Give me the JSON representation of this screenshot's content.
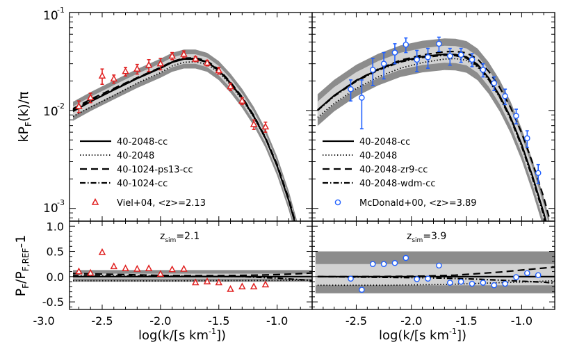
{
  "chart_data": [
    {
      "type": "line",
      "panel": "top-left",
      "xlim": [
        -2.78,
        -0.7
      ],
      "ylim_log10": [
        -3.13,
        -1.0
      ],
      "ylabel": "kP_F(k)/π",
      "yticks": [
        {
          "exp": -1,
          "label": "10"
        },
        {
          "exp": -2,
          "label": "10"
        },
        {
          "exp": -3,
          "label": "10"
        }
      ],
      "series": [
        {
          "name": "40-2048-cc",
          "style": "solid",
          "x": [
            -2.75,
            -2.6,
            -2.4,
            -2.2,
            -2.0,
            -1.9,
            -1.8,
            -1.7,
            -1.6,
            -1.5,
            -1.4,
            -1.3,
            -1.2,
            -1.1,
            -1.0,
            -0.9,
            -0.8
          ],
          "y": [
            0.0098,
            0.0123,
            0.0162,
            0.0212,
            0.027,
            0.031,
            0.0335,
            0.0335,
            0.031,
            0.0255,
            0.019,
            0.0133,
            0.0087,
            0.0052,
            0.0027,
            0.0012,
            0.00045
          ]
        },
        {
          "name": "40-2048",
          "style": "dotted",
          "x": [
            -2.75,
            -2.6,
            -2.4,
            -2.2,
            -2.0,
            -1.9,
            -1.8,
            -1.7,
            -1.6,
            -1.5,
            -1.4,
            -1.3,
            -1.2,
            -1.1,
            -1.0,
            -0.9,
            -0.8
          ],
          "y": [
            0.0087,
            0.0108,
            0.0142,
            0.019,
            0.0243,
            0.0285,
            0.031,
            0.0315,
            0.0295,
            0.0245,
            0.0183,
            0.0129,
            0.0085,
            0.0051,
            0.0027,
            0.0012,
            0.00045
          ]
        },
        {
          "name": "40-1024-ps13-cc",
          "style": "dashed",
          "x": [
            -2.75,
            -2.6,
            -2.4,
            -2.2,
            -2.0,
            -1.9,
            -1.8,
            -1.7,
            -1.6,
            -1.5,
            -1.4,
            -1.3,
            -1.2,
            -1.1,
            -1.0,
            -0.9,
            -0.8
          ],
          "y": [
            0.0104,
            0.013,
            0.0168,
            0.0216,
            0.0275,
            0.0316,
            0.0342,
            0.0345,
            0.032,
            0.0262,
            0.0195,
            0.0137,
            0.0089,
            0.0053,
            0.0028,
            0.00125,
            0.00047
          ]
        },
        {
          "name": "40-1024-cc",
          "style": "dashdot",
          "x": [
            -2.75,
            -2.6,
            -2.4,
            -2.2,
            -2.0,
            -1.9,
            -1.8,
            -1.7,
            -1.6,
            -1.5,
            -1.4,
            -1.3,
            -1.2,
            -1.1,
            -1.0,
            -0.9,
            -0.8
          ],
          "y": [
            0.0101,
            0.0126,
            0.0165,
            0.0214,
            0.0272,
            0.0313,
            0.0338,
            0.034,
            0.0313,
            0.0257,
            0.0191,
            0.0134,
            0.0087,
            0.0052,
            0.0027,
            0.0012,
            0.00045
          ]
        }
      ],
      "data_points": {
        "name": "Viel+04, <z>=2.13",
        "marker": "triangle",
        "color": "#e02020",
        "x": [
          -2.7,
          -2.6,
          -2.5,
          -2.4,
          -2.3,
          -2.2,
          -2.1,
          -2.0,
          -1.9,
          -1.8,
          -1.7,
          -1.6,
          -1.5,
          -1.4,
          -1.3,
          -1.2,
          -1.1
        ],
        "y": [
          0.011,
          0.0135,
          0.0225,
          0.021,
          0.025,
          0.0265,
          0.029,
          0.03,
          0.036,
          0.0375,
          0.0335,
          0.0305,
          0.0255,
          0.0175,
          0.0125,
          0.0072,
          0.0068
        ],
        "err": [
          0.0015,
          0.0015,
          0.004,
          0.002,
          0.0025,
          0.003,
          0.004,
          0.004,
          0.003,
          0.003,
          0.002,
          0.002,
          0.002,
          0.0015,
          0.001,
          0.0008,
          0.0008
        ]
      },
      "legend": [
        "40-2048-cc",
        "40-2048",
        "40-1024-ps13-cc",
        "40-1024-cc",
        "Viel+04, <z>=2.13"
      ]
    },
    {
      "type": "line",
      "panel": "top-right",
      "xlim": [
        -2.9,
        -0.7
      ],
      "ylim_log10": [
        -3.13,
        -1.0
      ],
      "series": [
        {
          "name": "40-2048-cc",
          "style": "solid",
          "x": [
            -2.85,
            -2.7,
            -2.5,
            -2.3,
            -2.1,
            -1.9,
            -1.7,
            -1.6,
            -1.5,
            -1.4,
            -1.3,
            -1.2,
            -1.1,
            -1.0,
            -0.9,
            -0.8,
            -0.75
          ],
          "y": [
            0.0101,
            0.0142,
            0.0202,
            0.0262,
            0.0318,
            0.0355,
            0.0375,
            0.0372,
            0.0352,
            0.0295,
            0.0215,
            0.0142,
            0.0085,
            0.0045,
            0.0021,
            0.0009,
            0.00055
          ]
        },
        {
          "name": "40-2048",
          "style": "dotted",
          "x": [
            -2.85,
            -2.7,
            -2.5,
            -2.3,
            -2.1,
            -1.9,
            -1.7,
            -1.6,
            -1.5,
            -1.4,
            -1.3,
            -1.2,
            -1.1,
            -1.0,
            -0.9,
            -0.8,
            -0.75
          ],
          "y": [
            0.0085,
            0.0118,
            0.0168,
            0.022,
            0.027,
            0.0308,
            0.0335,
            0.0338,
            0.0325,
            0.0278,
            0.0205,
            0.0137,
            0.0083,
            0.0044,
            0.0021,
            0.0009,
            0.00055
          ]
        },
        {
          "name": "40-2048-zr9-cc",
          "style": "dashed",
          "x": [
            -2.85,
            -2.7,
            -2.5,
            -2.3,
            -2.1,
            -1.9,
            -1.7,
            -1.6,
            -1.5,
            -1.4,
            -1.3,
            -1.2,
            -1.1,
            -1.0,
            -0.9,
            -0.8,
            -0.75
          ],
          "y": [
            0.0101,
            0.0142,
            0.0203,
            0.0265,
            0.0325,
            0.0368,
            0.0398,
            0.04,
            0.0387,
            0.0335,
            0.0252,
            0.0172,
            0.0107,
            0.0059,
            0.0029,
            0.0013,
            0.0008
          ]
        },
        {
          "name": "40-2048-wdm-cc",
          "style": "dashdot",
          "x": [
            -2.85,
            -2.7,
            -2.5,
            -2.3,
            -2.1,
            -1.9,
            -1.7,
            -1.6,
            -1.5,
            -1.4,
            -1.3,
            -1.2,
            -1.1,
            -1.0,
            -0.9,
            -0.8,
            -0.75
          ],
          "y": [
            0.01,
            0.014,
            0.0199,
            0.0258,
            0.0312,
            0.0348,
            0.0367,
            0.0363,
            0.0342,
            0.0285,
            0.0207,
            0.0137,
            0.0082,
            0.0043,
            0.002,
            0.00085,
            0.0005
          ]
        }
      ],
      "data_points": {
        "name": "McDonald+00, <z>=3.89",
        "marker": "circle",
        "color": "#2060ff",
        "x": [
          -2.55,
          -2.45,
          -2.35,
          -2.25,
          -2.15,
          -2.05,
          -1.95,
          -1.85,
          -1.75,
          -1.65,
          -1.55,
          -1.45,
          -1.35,
          -1.25,
          -1.15,
          -1.05,
          -0.95,
          -0.85
        ],
        "y": [
          0.0165,
          0.0135,
          0.026,
          0.03,
          0.039,
          0.047,
          0.033,
          0.035,
          0.048,
          0.036,
          0.037,
          0.033,
          0.026,
          0.019,
          0.014,
          0.0088,
          0.0052,
          0.0023
        ],
        "err": [
          0.004,
          0.007,
          0.008,
          0.009,
          0.009,
          0.008,
          0.008,
          0.008,
          0.008,
          0.007,
          0.006,
          0.005,
          0.004,
          0.003,
          0.0025,
          0.0015,
          0.001,
          0.0005
        ]
      },
      "legend": [
        "40-2048-cc",
        "40-2048",
        "40-2048-zr9-cc",
        "40-2048-wdm-cc",
        "McDonald+00, <z>=3.89"
      ]
    },
    {
      "type": "line",
      "panel": "bottom-left",
      "xlim": [
        -2.78,
        -0.7
      ],
      "ylim": [
        -0.65,
        1.1
      ],
      "ylabel": "P_F/P_F,REF-1",
      "xlabel": "log(k/[s km^-1])",
      "annotation": {
        "text": "z",
        "sub": "sim",
        "value": "=2.1"
      },
      "series": [
        {
          "name": "40-2048-cc",
          "style": "solid",
          "x": [
            -2.75,
            -0.7
          ],
          "y": [
            0.0,
            0.0
          ]
        },
        {
          "name": "40-2048",
          "style": "dotted",
          "x": [
            -2.75,
            -2.0,
            -1.5,
            -1.0,
            -0.7
          ],
          "y": [
            -0.08,
            -0.085,
            -0.08,
            -0.075,
            -0.07
          ]
        },
        {
          "name": "40-1024-ps13-cc",
          "style": "dashed",
          "x": [
            -2.75,
            -2.5,
            -2.2,
            -2.0,
            -1.8,
            -1.5,
            -1.2,
            -1.0,
            -0.8,
            -0.7
          ],
          "y": [
            0.06,
            0.05,
            0.035,
            0.025,
            0.02,
            0.02,
            0.03,
            0.04,
            0.06,
            0.07
          ]
        },
        {
          "name": "40-1024-cc",
          "style": "dashdot",
          "x": [
            -2.75,
            -2.2,
            -1.7,
            -1.3,
            -1.0,
            -0.8,
            -0.7
          ],
          "y": [
            0.02,
            0.01,
            0.005,
            0.0,
            -0.03,
            -0.06,
            -0.08
          ]
        }
      ],
      "data_points": {
        "name": "Viel+04",
        "marker": "triangle",
        "color": "#e02020",
        "x": [
          -2.7,
          -2.6,
          -2.5,
          -2.4,
          -2.3,
          -2.2,
          -2.1,
          -2.0,
          -1.9,
          -1.8,
          -1.7,
          -1.6,
          -1.5,
          -1.4,
          -1.3,
          -1.2,
          -1.1
        ],
        "y": [
          0.1,
          0.07,
          0.48,
          0.2,
          0.16,
          0.15,
          0.16,
          0.05,
          0.14,
          0.15,
          -0.12,
          -0.1,
          -0.12,
          -0.25,
          -0.2,
          -0.2,
          -0.16
        ]
      },
      "xticks": [
        -3.0,
        -2.5,
        -2.0,
        -1.5,
        -1.0
      ],
      "xtick_labels": [
        "-3.0",
        "-2.5",
        "-2.0",
        "-1.5",
        "-1.0"
      ],
      "yticks": [
        -0.5,
        0.0,
        0.5,
        1.0
      ],
      "ytick_labels": [
        "-0.5",
        "0.0",
        "0.5",
        "1.0"
      ]
    },
    {
      "type": "line",
      "panel": "bottom-right",
      "xlim": [
        -2.9,
        -0.7
      ],
      "ylim": [
        -0.65,
        1.1
      ],
      "xlabel": "log(k/[s km^-1])",
      "annotation": {
        "text": "z",
        "sub": "sim",
        "value": "=3.9"
      },
      "series": [
        {
          "name": "40-2048-cc",
          "style": "solid",
          "x": [
            -2.85,
            -0.7
          ],
          "y": [
            0.0,
            0.0
          ]
        },
        {
          "name": "40-2048",
          "style": "dotted",
          "x": [
            -2.85,
            -2.2,
            -1.6,
            -1.2,
            -0.9,
            -0.7
          ],
          "y": [
            -0.17,
            -0.17,
            -0.15,
            -0.12,
            -0.1,
            -0.08
          ]
        },
        {
          "name": "40-2048-zr9-cc",
          "style": "dashed",
          "x": [
            -2.85,
            -2.5,
            -2.2,
            -1.9,
            -1.6,
            -1.4,
            -1.2,
            -1.0,
            -0.8,
            -0.7
          ],
          "y": [
            0.0,
            0.0,
            0.005,
            0.01,
            0.03,
            0.06,
            0.09,
            0.13,
            0.17,
            0.19
          ]
        },
        {
          "name": "40-2048-wdm-cc",
          "style": "dashdot",
          "x": [
            -2.85,
            -2.4,
            -2.0,
            -1.7,
            -1.4,
            -1.2,
            -1.0,
            -0.8,
            -0.7
          ],
          "y": [
            0.0,
            -0.01,
            -0.02,
            -0.03,
            -0.05,
            -0.07,
            -0.09,
            -0.11,
            -0.13
          ]
        }
      ],
      "data_points": {
        "name": "McDonald+00",
        "marker": "circle",
        "color": "#2060ff",
        "x": [
          -2.55,
          -2.45,
          -2.35,
          -2.25,
          -2.15,
          -2.05,
          -1.95,
          -1.85,
          -1.75,
          -1.65,
          -1.55,
          -1.45,
          -1.35,
          -1.25,
          -1.15,
          -1.05,
          -0.95,
          -0.85
        ],
        "y": [
          -0.04,
          -0.26,
          0.25,
          0.25,
          0.27,
          0.37,
          -0.05,
          -0.04,
          0.22,
          -0.12,
          -0.1,
          -0.14,
          -0.12,
          -0.17,
          -0.14,
          -0.01,
          0.07,
          0.03
        ]
      },
      "xticks": [
        -2.5,
        -2.0,
        -1.5,
        -1.0
      ],
      "xtick_labels": [
        "-2.5",
        "-2.0",
        "-1.5",
        "-1.0"
      ],
      "yticks": [
        -0.5,
        0.0,
        0.5,
        1.0
      ]
    }
  ],
  "labels": {
    "ylabel_top_main": "kP",
    "ylabel_top_sub": "F",
    "ylabel_top_rest": "(k)/π",
    "ylabel_bot_main": "P",
    "ylabel_bot_sub1": "F",
    "ylabel_bot_mid": "/P",
    "ylabel_bot_sub2": "F,REF",
    "ylabel_bot_rest": "-1",
    "xlabel_main": "log(k/[s km",
    "xlabel_sup": "-1",
    "xlabel_rest": "])",
    "ytick_base": "10",
    "ytick_exp_1": "-1",
    "ytick_exp_2": "-2",
    "ytick_exp_3": "-3",
    "zsim_z": "z",
    "zsim_sub": "sim",
    "zsim_left_val": "=2.1",
    "zsim_right_val": "=3.9"
  },
  "colors": {
    "band_dark": "#8c8c8c",
    "band_light": "#d2d2d2",
    "viel": "#e02020",
    "mcdonald": "#2060ff"
  }
}
